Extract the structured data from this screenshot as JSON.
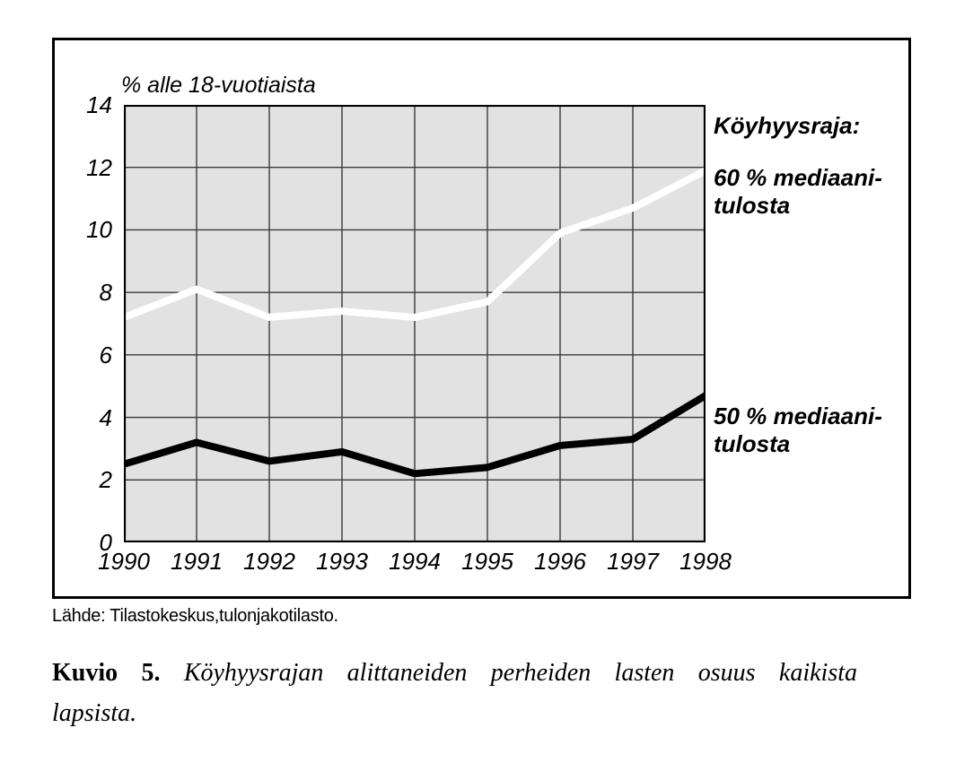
{
  "figure": {
    "axis_title": "% alle 18-vuotiaista",
    "legend": {
      "heading": "Köyhyysraja:",
      "items": [
        {
          "id": "60",
          "label": "60 % mediaani-\ntulosta"
        },
        {
          "id": "50",
          "label": "50 % mediaani-\ntulosta"
        }
      ]
    }
  },
  "chart_data": {
    "type": "line",
    "title": "% alle 18-vuotiaista",
    "categories": [
      "1990",
      "1991",
      "1992",
      "1993",
      "1994",
      "1995",
      "1996",
      "1997",
      "1998"
    ],
    "series": [
      {
        "name": "60 % mediaanitulosta",
        "color": "#ffffff",
        "width": 8,
        "values": [
          7.2,
          8.1,
          7.2,
          7.4,
          7.2,
          7.7,
          9.9,
          10.7,
          11.9
        ]
      },
      {
        "name": "50 % mediaanitulosta",
        "color": "#000000",
        "width": 8,
        "values": [
          2.5,
          3.2,
          2.6,
          2.9,
          2.2,
          2.4,
          3.1,
          3.3,
          4.7
        ]
      }
    ],
    "ylim": [
      0,
      14
    ],
    "yticks": [
      0,
      2,
      4,
      6,
      8,
      10,
      12,
      14
    ],
    "grid": true,
    "grid_color": "#3a3a3a",
    "plot_bg": "#e2e2e2",
    "border_color": "#000000",
    "legend_position": "right"
  },
  "source": "Lähde: Tilastokeskus,tulonjakotilasto.",
  "caption": {
    "label": "Kuvio 5.",
    "line1": "Köyhyysrajan alittaneiden perheiden lasten osuus kaikista",
    "line2": "lapsista."
  }
}
